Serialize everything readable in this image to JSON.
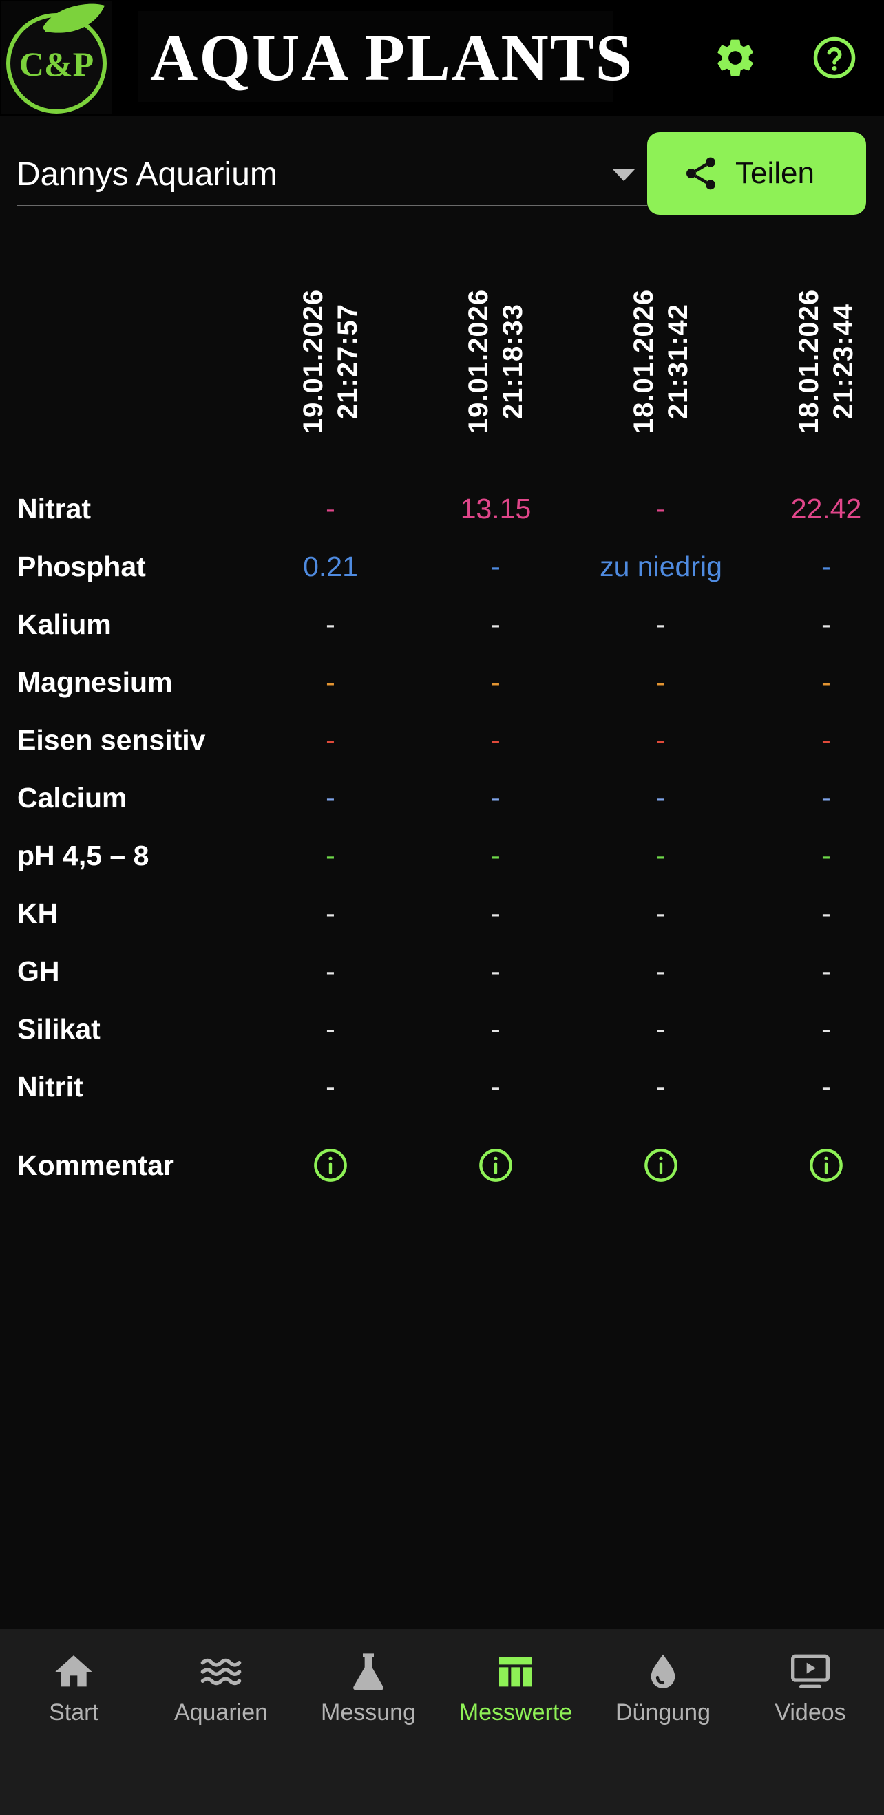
{
  "header": {
    "logo_text": "C&P",
    "brand_title": "AQUA PLANTS",
    "settings_icon": "gear-icon",
    "help_icon": "help-circle-icon"
  },
  "toolbar": {
    "aquarium_selected": "Dannys Aquarium",
    "share_label": "Teilen",
    "share_icon": "share-icon"
  },
  "table": {
    "columns": [
      {
        "date": "19.01.2026",
        "time": "21:27:57"
      },
      {
        "date": "19.01.2026",
        "time": "21:18:33"
      },
      {
        "date": "18.01.2026",
        "time": "21:31:42"
      },
      {
        "date": "18.01.2026",
        "time": "21:23:44"
      }
    ],
    "rows": [
      {
        "label": "Nitrat",
        "color": "#e0468a",
        "values": [
          "-",
          "13.15",
          "-",
          "22.42"
        ]
      },
      {
        "label": "Phosphat",
        "color": "#4f8be0",
        "values": [
          "0.21",
          "-",
          "zu niedrig",
          "-"
        ]
      },
      {
        "label": "Kalium",
        "color": "#e6e6e6",
        "values": [
          "-",
          "-",
          "-",
          "-"
        ]
      },
      {
        "label": "Magnesium",
        "color": "#e39432",
        "values": [
          "-",
          "-",
          "-",
          "-"
        ]
      },
      {
        "label": "Eisen sensitiv",
        "color": "#e04a3a",
        "values": [
          "-",
          "-",
          "-",
          "-"
        ]
      },
      {
        "label": "Calcium",
        "color": "#7fa4e8",
        "values": [
          "-",
          "-",
          "-",
          "-"
        ]
      },
      {
        "label": "pH 4,5 – 8",
        "color": "#6fd84a",
        "values": [
          "-",
          "-",
          "-",
          "-"
        ]
      },
      {
        "label": "KH",
        "color": "#e6e6e6",
        "values": [
          "-",
          "-",
          "-",
          "-"
        ]
      },
      {
        "label": "GH",
        "color": "#e6e6e6",
        "values": [
          "-",
          "-",
          "-",
          "-"
        ]
      },
      {
        "label": "Silikat",
        "color": "#e6e6e6",
        "values": [
          "-",
          "-",
          "-",
          "-"
        ]
      },
      {
        "label": "Nitrit",
        "color": "#e6e6e6",
        "values": [
          "-",
          "-",
          "-",
          "-"
        ]
      }
    ],
    "comment_label": "Kommentar",
    "comment_icon": "info-circle-icon"
  },
  "nav": {
    "active": "Messwerte",
    "active_color": "#8ef156",
    "items": [
      {
        "label": "Start",
        "icon": "home-icon"
      },
      {
        "label": "Aquarien",
        "icon": "waves-icon"
      },
      {
        "label": "Messung",
        "icon": "flask-icon"
      },
      {
        "label": "Messwerte",
        "icon": "table-icon"
      },
      {
        "label": "Düngung",
        "icon": "drop-icon"
      },
      {
        "label": "Videos",
        "icon": "video-play-icon"
      }
    ]
  }
}
